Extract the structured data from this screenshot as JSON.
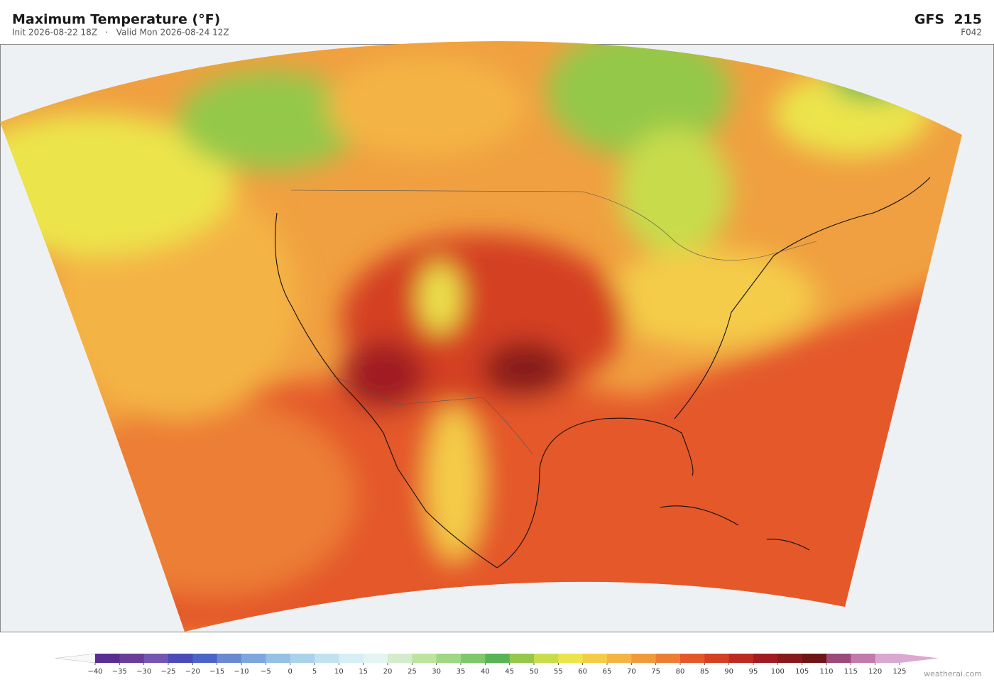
{
  "header": {
    "title": "Maximum Temperature  (°F)",
    "subtitle": "Init 2026-08-22 18Z   ·   Valid Mon 2026-08-24 12Z",
    "model": "GFS  215",
    "forecast_hour": "F042"
  },
  "colorbar": {
    "ticks": [
      {
        "value": -40,
        "label": "−40"
      },
      {
        "value": -35,
        "label": "−35"
      },
      {
        "value": -30,
        "label": "−30"
      },
      {
        "value": -25,
        "label": "−25"
      },
      {
        "value": -20,
        "label": "−20"
      },
      {
        "value": -15,
        "label": "−15"
      },
      {
        "value": -10,
        "label": "−10"
      },
      {
        "value": -5,
        "label": "−5"
      },
      0,
      5,
      10,
      15,
      20,
      25,
      30,
      35,
      40,
      45,
      50,
      55,
      60,
      65,
      70,
      75,
      80,
      85,
      90,
      95,
      100,
      105,
      110,
      115,
      120,
      125
    ],
    "colors": [
      "#5a2d91",
      "#6a3d9a",
      "#7455b0",
      "#4a4ab8",
      "#4a64c8",
      "#6a8ad0",
      "#7ea6dc",
      "#96c0e4",
      "#aad2ea",
      "#c2e2f0",
      "#d6eef4",
      "#e4f4f0",
      "#d4eccc",
      "#bce4a0",
      "#9ed884",
      "#7ec86a",
      "#58b454",
      "#94c84a",
      "#c8dc4c",
      "#ece44c",
      "#f4cc48",
      "#f4b444",
      "#f09a3c",
      "#ec7e34",
      "#e4582a",
      "#d44024",
      "#bc2a22",
      "#a01c20",
      "#881a1c",
      "#6e1616",
      "#9c4a7a",
      "#c07aac",
      "#d8a8d0"
    ],
    "under_color": "#f8f8f8",
    "over_color": "#dca8d0"
  },
  "footer": {
    "credit": "weatherai.com"
  }
}
